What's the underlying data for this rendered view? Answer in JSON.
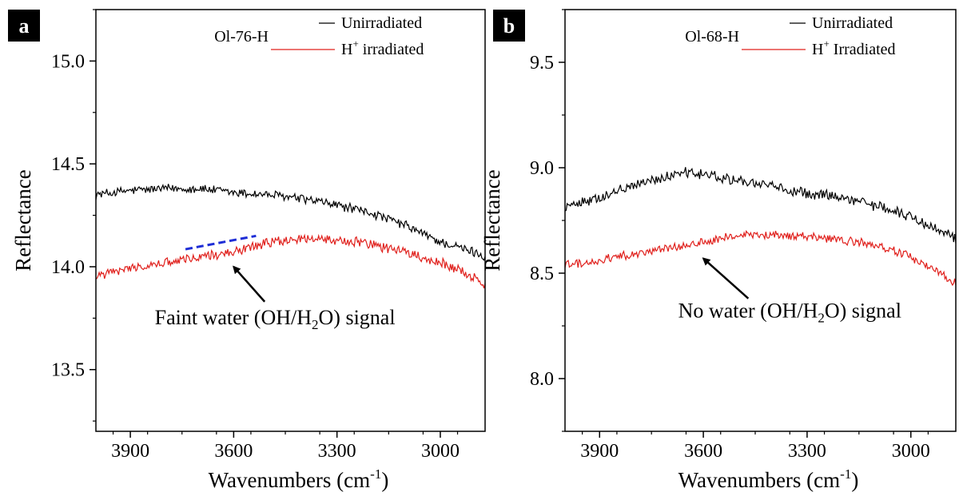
{
  "chart_data": [
    {
      "type": "line",
      "panel_label": "a",
      "sample_label": "Ol-76-H",
      "xlabel": "Wavenumbers (cm",
      "xlabel_sup": "-1",
      "xlabel_end": ")",
      "ylabel": "Reflectance",
      "xlim": [
        4000,
        2870
      ],
      "ylim": [
        13.2,
        15.25
      ],
      "xticks": [
        3900,
        3600,
        3300,
        3000
      ],
      "xtick_labels": [
        "3900",
        "3600",
        "3300",
        "3000"
      ],
      "yticks": [
        13.5,
        14.0,
        14.5,
        15.0
      ],
      "ytick_labels": [
        "13.5",
        "14.0",
        "14.5",
        "15.0"
      ],
      "legend": {
        "position": "top-right",
        "entries": [
          {
            "label": "Unirradiated",
            "sup": ""
          },
          {
            "label": "H",
            "sup": "+",
            "suffix": " irradiated"
          }
        ]
      },
      "series": [
        {
          "name": "Unirradiated",
          "color": "#000000",
          "noise": 0.02,
          "x": [
            4000,
            3900,
            3800,
            3700,
            3600,
            3500,
            3400,
            3300,
            3200,
            3100,
            3000,
            2900,
            2870
          ],
          "y": [
            14.35,
            14.37,
            14.38,
            14.38,
            14.36,
            14.35,
            14.33,
            14.3,
            14.26,
            14.2,
            14.12,
            14.07,
            14.05
          ]
        },
        {
          "name": "H+ irradiated",
          "color": "#e0201c",
          "noise": 0.022,
          "x": [
            4000,
            3900,
            3800,
            3700,
            3600,
            3500,
            3400,
            3300,
            3200,
            3100,
            3000,
            2900,
            2870
          ],
          "y": [
            13.96,
            13.99,
            14.02,
            14.05,
            14.07,
            14.12,
            14.14,
            14.13,
            14.11,
            14.07,
            14.02,
            13.95,
            13.91
          ]
        }
      ],
      "dashed_line": {
        "color": "#1f2ed6",
        "x": [
          3740,
          3535
        ],
        "y": [
          14.085,
          14.15
        ]
      },
      "arrow": {
        "from_x": 3510,
        "from_y": 13.83,
        "to_x": 3600,
        "to_y": 14.0
      },
      "annotation": {
        "text_before": "Faint water (OH/H",
        "sub": "2",
        "text_after": "O) signal",
        "x": 3480,
        "y": 13.72
      }
    },
    {
      "type": "line",
      "panel_label": "b",
      "sample_label": "Ol-68-H",
      "xlabel": "Wavenumbers (cm",
      "xlabel_sup": "-1",
      "xlabel_end": ")",
      "ylabel": "Reflectance",
      "xlim": [
        4000,
        2870
      ],
      "ylim": [
        7.75,
        9.75
      ],
      "xticks": [
        3900,
        3600,
        3300,
        3000
      ],
      "xtick_labels": [
        "3900",
        "3600",
        "3300",
        "3000"
      ],
      "yticks": [
        8.0,
        8.5,
        9.0,
        9.5
      ],
      "ytick_labels": [
        "8.0",
        "8.5",
        "9.0",
        "9.5"
      ],
      "legend": {
        "position": "top-right",
        "entries": [
          {
            "label": "Unirradiated",
            "sup": ""
          },
          {
            "label": "H",
            "sup": "+",
            "suffix": " Irradiated"
          }
        ]
      },
      "series": [
        {
          "name": "Unirradiated",
          "color": "#000000",
          "noise": 0.022,
          "x": [
            4000,
            3900,
            3800,
            3700,
            3650,
            3600,
            3500,
            3400,
            3300,
            3200,
            3100,
            3000,
            2900,
            2870
          ],
          "y": [
            8.82,
            8.86,
            8.92,
            8.96,
            8.98,
            8.97,
            8.94,
            8.91,
            8.88,
            8.86,
            8.82,
            8.77,
            8.69,
            8.66
          ]
        },
        {
          "name": "H+ Irradiated",
          "color": "#e0201c",
          "noise": 0.018,
          "x": [
            4000,
            3900,
            3800,
            3700,
            3600,
            3500,
            3400,
            3300,
            3200,
            3100,
            3000,
            2900,
            2870
          ],
          "y": [
            8.54,
            8.56,
            8.59,
            8.62,
            8.65,
            8.68,
            8.68,
            8.67,
            8.66,
            8.63,
            8.58,
            8.48,
            8.45
          ]
        }
      ],
      "arrow": {
        "from_x": 3470,
        "from_y": 8.38,
        "to_x": 3600,
        "to_y": 8.57
      },
      "annotation": {
        "text_before": "No water (OH/H",
        "sub": "2",
        "text_after": "O) signal",
        "x": 3350,
        "y": 8.29
      }
    }
  ]
}
